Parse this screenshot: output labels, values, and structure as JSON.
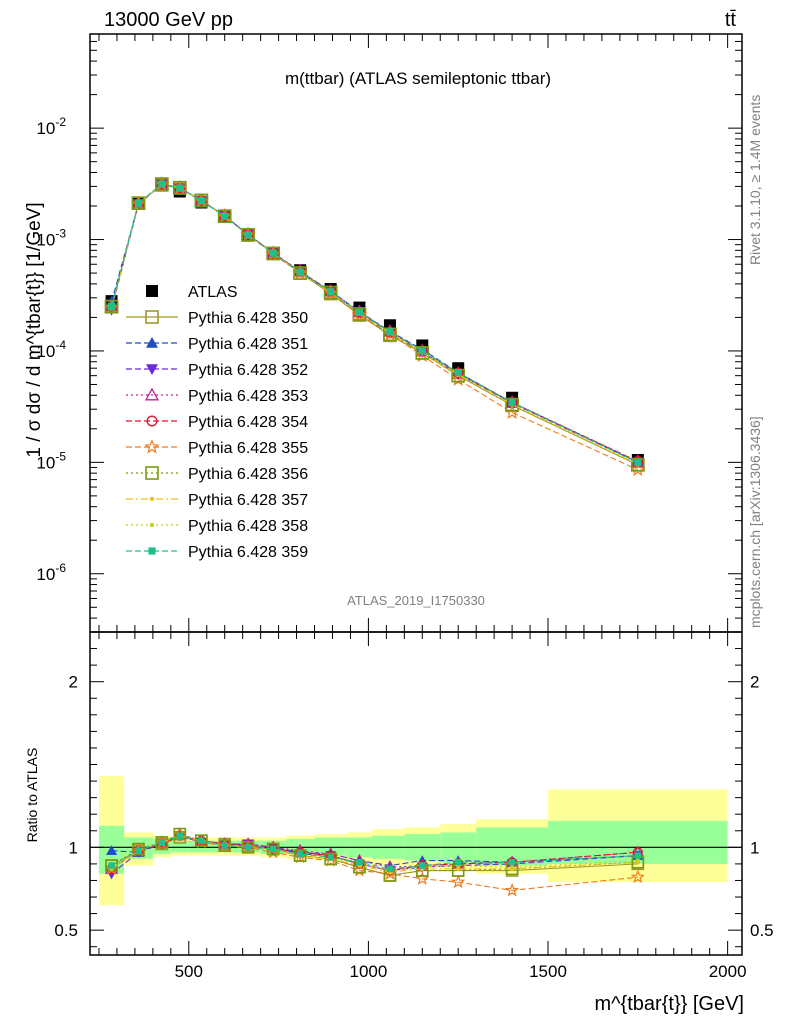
{
  "header": {
    "energy": "13000 GeV pp",
    "process": "tt̄"
  },
  "side": {
    "rivet": "Rivet 3.1.10, ≥ 1.4M events",
    "mcplots": "mcplots.cern.ch [arXiv:1306.3436]"
  },
  "colors": {
    "ATLAS": "#000000",
    "Pythia 6.428 350": "#a09a2a",
    "Pythia 6.428 351": "#1f4fbf",
    "Pythia 6.428 352": "#6a2bd6",
    "Pythia 6.428 353": "#c0209a",
    "Pythia 6.428 354": "#e0102e",
    "Pythia 6.428 355": "#f07a1a",
    "Pythia 6.428 356": "#7a9a10",
    "Pythia 6.428 357": "#e8c21a",
    "Pythia 6.428 358": "#c8d020",
    "Pythia 6.428 359": "#20c08a",
    "band_inner": "#99ff99",
    "band_outer": "#ffff99"
  },
  "chart_data": [
    {
      "type": "line",
      "title": "m(ttbar) (ATLAS semileptonic ttbar)",
      "ylabel": "1 / σ dσ / d m^{tbar{t}} [1/GeV]",
      "xlim": [
        225,
        2040
      ],
      "ylim": [
        3e-07,
        0.07
      ],
      "yscale": "log",
      "yticks": [
        {
          "value": 1e-06,
          "label": "10^-6"
        },
        {
          "value": 1e-05,
          "label": "10^-5"
        },
        {
          "value": 0.0001,
          "label": "10^-4"
        },
        {
          "value": 0.001,
          "label": "10^-3"
        },
        {
          "value": 0.01,
          "label": "10^-2"
        }
      ],
      "watermark": "ATLAS_2019_I1750330",
      "legend_position": "center-left",
      "x": [
        285,
        360,
        425,
        475,
        535,
        600,
        665,
        735,
        810,
        895,
        975,
        1060,
        1150,
        1250,
        1400,
        1750
      ],
      "series": [
        {
          "name": "ATLAS",
          "marker": "square-filled",
          "values": [
            0.00028,
            0.00215,
            0.00305,
            0.0027,
            0.00215,
            0.0016,
            0.0011,
            0.00076,
            0.00053,
            0.00036,
            0.000245,
            0.00017,
            0.000112,
            7e-05,
            3.8e-05,
            1.05e-05
          ]
        },
        {
          "name": "Pythia 6.428 350",
          "marker": "square-open",
          "dash": "solid",
          "values": [
            0.00025,
            0.00212,
            0.0031,
            0.0029,
            0.00225,
            0.00162,
            0.0011,
            0.00075,
            0.0005,
            0.000327,
            0.00021,
            0.000138,
            9.6e-05,
            6e-05,
            3.25e-05,
            9.5e-06
          ]
        },
        {
          "name": "Pythia 6.428 351",
          "marker": "triangle-up-filled",
          "dash": "dashed",
          "values": [
            0.000275,
            0.0021,
            0.00315,
            0.00292,
            0.00225,
            0.00163,
            0.00111,
            0.00076,
            0.000515,
            0.000345,
            0.000225,
            0.00015,
            0.000103,
            6.4e-05,
            3.45e-05,
            1e-05
          ]
        },
        {
          "name": "Pythia 6.428 352",
          "marker": "triangle-down-filled",
          "dash": "dashed",
          "values": [
            0.000235,
            0.00208,
            0.00312,
            0.0029,
            0.00222,
            0.00163,
            0.00111,
            0.000755,
            0.00051,
            0.00034,
            0.00022,
            0.000145,
            9.8e-05,
            6.2e-05,
            3.4e-05,
            1e-05
          ]
        },
        {
          "name": "Pythia 6.428 353",
          "marker": "triangle-up-open",
          "dash": "dotted",
          "values": [
            0.000245,
            0.0021,
            0.00315,
            0.00292,
            0.00224,
            0.00164,
            0.00112,
            0.00076,
            0.00052,
            0.000345,
            0.000225,
            0.00015,
            0.0001,
            6.3e-05,
            3.45e-05,
            1.02e-05
          ]
        },
        {
          "name": "Pythia 6.428 354",
          "marker": "circle-open",
          "dash": "dashed",
          "values": [
            0.000245,
            0.0021,
            0.00312,
            0.0029,
            0.00223,
            0.00163,
            0.00111,
            0.000755,
            0.000515,
            0.00034,
            0.00022,
            0.000147,
            0.0001,
            6.3e-05,
            3.45e-05,
            1.02e-05
          ]
        },
        {
          "name": "Pythia 6.428 355",
          "marker": "star-open",
          "dash": "dashed",
          "values": [
            0.000245,
            0.0021,
            0.00315,
            0.00292,
            0.00222,
            0.00162,
            0.0011,
            0.00074,
            0.0005,
            0.00033,
            0.00021,
            0.000142,
            9.1e-05,
            5.55e-05,
            2.8e-05,
            8.6e-06
          ]
        },
        {
          "name": "Pythia 6.428 356",
          "marker": "square-open",
          "dash": "dotted",
          "values": [
            0.00025,
            0.00212,
            0.00315,
            0.00292,
            0.00223,
            0.00162,
            0.0011,
            0.00075,
            0.0005,
            0.000335,
            0.000215,
            0.000141,
            9.6e-05,
            6e-05,
            3.3e-05,
            9.5e-06
          ]
        },
        {
          "name": "Pythia 6.428 357",
          "marker": "dot",
          "dash": "dashdot",
          "values": [
            0.000245,
            0.0021,
            0.00315,
            0.0029,
            0.00223,
            0.00162,
            0.0011,
            0.00075,
            0.000505,
            0.000335,
            0.000218,
            0.000145,
            9.7e-05,
            6.1e-05,
            3.3e-05,
            9.6e-06
          ]
        },
        {
          "name": "Pythia 6.428 358",
          "marker": "dot",
          "dash": "dotted",
          "values": [
            0.000245,
            0.0021,
            0.00315,
            0.0029,
            0.00223,
            0.00162,
            0.0011,
            0.00075,
            0.000505,
            0.000335,
            0.00022,
            0.000146,
            9.8e-05,
            6.2e-05,
            3.35e-05,
            9.7e-06
          ]
        },
        {
          "name": "Pythia 6.428 359",
          "marker": "square-filled-small",
          "dash": "dashed",
          "values": [
            0.00025,
            0.00212,
            0.00315,
            0.0029,
            0.00223,
            0.00162,
            0.0011,
            0.000755,
            0.00051,
            0.00034,
            0.000222,
            0.000148,
            0.0001,
            6.4e-05,
            3.45e-05,
            1e-05
          ]
        }
      ]
    },
    {
      "type": "line",
      "ylabel": "Ratio to ATLAS",
      "xlabel": "m^{tbar{t}} [GeV]",
      "xlim": [
        225,
        2040
      ],
      "ylim": [
        0.35,
        2.3
      ],
      "xticks": [
        500,
        1000,
        1500,
        2000
      ],
      "yticks": [
        0.5,
        1,
        2
      ],
      "uncertainty_bands": [
        {
          "x0": 250,
          "x1": 320,
          "inner": [
            0.84,
            1.13
          ],
          "outer": [
            0.65,
            1.43
          ]
        },
        {
          "x0": 320,
          "x1": 400,
          "inner": [
            0.93,
            1.06
          ],
          "outer": [
            0.89,
            1.09
          ]
        },
        {
          "x0": 400,
          "x1": 450,
          "inner": [
            0.96,
            1.05
          ],
          "outer": [
            0.94,
            1.07
          ]
        },
        {
          "x0": 450,
          "x1": 500,
          "inner": [
            0.97,
            1.04
          ],
          "outer": [
            0.95,
            1.06
          ]
        },
        {
          "x0": 500,
          "x1": 570,
          "inner": [
            0.97,
            1.04
          ],
          "outer": [
            0.95,
            1.06
          ]
        },
        {
          "x0": 570,
          "x1": 630,
          "inner": [
            0.97,
            1.04
          ],
          "outer": [
            0.95,
            1.06
          ]
        },
        {
          "x0": 630,
          "x1": 700,
          "inner": [
            0.97,
            1.04
          ],
          "outer": [
            0.95,
            1.06
          ]
        },
        {
          "x0": 700,
          "x1": 770,
          "inner": [
            0.96,
            1.04
          ],
          "outer": [
            0.94,
            1.06
          ]
        },
        {
          "x0": 770,
          "x1": 850,
          "inner": [
            0.96,
            1.05
          ],
          "outer": [
            0.93,
            1.07
          ]
        },
        {
          "x0": 850,
          "x1": 940,
          "inner": [
            0.95,
            1.06
          ],
          "outer": [
            0.92,
            1.08
          ]
        },
        {
          "x0": 940,
          "x1": 1010,
          "inner": [
            0.94,
            1.06
          ],
          "outer": [
            0.91,
            1.09
          ]
        },
        {
          "x0": 1010,
          "x1": 1100,
          "inner": [
            0.93,
            1.07
          ],
          "outer": [
            0.89,
            1.11
          ]
        },
        {
          "x0": 1100,
          "x1": 1200,
          "inner": [
            0.92,
            1.08
          ],
          "outer": [
            0.88,
            1.12
          ]
        },
        {
          "x0": 1200,
          "x1": 1300,
          "inner": [
            0.91,
            1.09
          ],
          "outer": [
            0.86,
            1.14
          ]
        },
        {
          "x0": 1300,
          "x1": 1500,
          "inner": [
            0.89,
            1.12
          ],
          "outer": [
            0.84,
            1.17
          ]
        },
        {
          "x0": 1500,
          "x1": 2000,
          "inner": [
            0.9,
            1.16
          ],
          "outer": [
            0.79,
            1.35
          ]
        }
      ],
      "x": [
        285,
        360,
        425,
        475,
        535,
        600,
        665,
        735,
        810,
        895,
        975,
        1060,
        1150,
        1250,
        1400,
        1750
      ],
      "series": [
        {
          "name": "Pythia 6.428 350",
          "values": [
            0.89,
            0.98,
            1.02,
            1.06,
            1.04,
            1.02,
            1.01,
            0.99,
            0.95,
            0.93,
            0.88,
            0.83,
            0.86,
            0.86,
            0.86,
            0.9
          ]
        },
        {
          "name": "Pythia 6.428 351",
          "values": [
            0.98,
            0.97,
            1.03,
            1.07,
            1.04,
            1.02,
            1.02,
            1.0,
            0.97,
            0.96,
            0.92,
            0.89,
            0.92,
            0.92,
            0.91,
            0.95
          ]
        },
        {
          "name": "Pythia 6.428 352",
          "values": [
            0.84,
            0.97,
            1.02,
            1.07,
            1.03,
            1.02,
            1.02,
            1.0,
            0.96,
            0.95,
            0.9,
            0.86,
            0.88,
            0.89,
            0.9,
            0.95
          ]
        },
        {
          "name": "Pythia 6.428 353",
          "values": [
            0.87,
            0.98,
            1.03,
            1.08,
            1.04,
            1.02,
            1.02,
            1.0,
            0.98,
            0.96,
            0.92,
            0.88,
            0.89,
            0.9,
            0.91,
            0.97
          ]
        },
        {
          "name": "Pythia 6.428 354",
          "values": [
            0.87,
            0.98,
            1.02,
            1.07,
            1.04,
            1.02,
            1.01,
            0.99,
            0.97,
            0.95,
            0.9,
            0.86,
            0.89,
            0.9,
            0.91,
            0.97
          ]
        },
        {
          "name": "Pythia 6.428 355",
          "values": [
            0.87,
            0.98,
            1.03,
            1.08,
            1.03,
            1.01,
            1.0,
            0.97,
            0.94,
            0.92,
            0.86,
            0.84,
            0.81,
            0.79,
            0.74,
            0.82
          ]
        },
        {
          "name": "Pythia 6.428 356",
          "values": [
            0.89,
            0.99,
            1.03,
            1.08,
            1.04,
            1.01,
            1.0,
            0.99,
            0.95,
            0.93,
            0.88,
            0.83,
            0.86,
            0.86,
            0.87,
            0.91
          ]
        },
        {
          "name": "Pythia 6.428 357",
          "values": [
            0.87,
            0.98,
            1.03,
            1.07,
            1.04,
            1.01,
            1.0,
            0.99,
            0.95,
            0.93,
            0.89,
            0.85,
            0.87,
            0.87,
            0.87,
            0.91
          ]
        },
        {
          "name": "Pythia 6.428 358",
          "values": [
            0.87,
            0.98,
            1.03,
            1.07,
            1.04,
            1.01,
            1.0,
            0.99,
            0.95,
            0.93,
            0.9,
            0.86,
            0.88,
            0.89,
            0.88,
            0.92
          ]
        },
        {
          "name": "Pythia 6.428 359",
          "values": [
            0.89,
            0.98,
            1.03,
            1.07,
            1.04,
            1.01,
            1.0,
            0.99,
            0.96,
            0.94,
            0.91,
            0.87,
            0.89,
            0.91,
            0.91,
            0.95
          ]
        }
      ]
    }
  ]
}
